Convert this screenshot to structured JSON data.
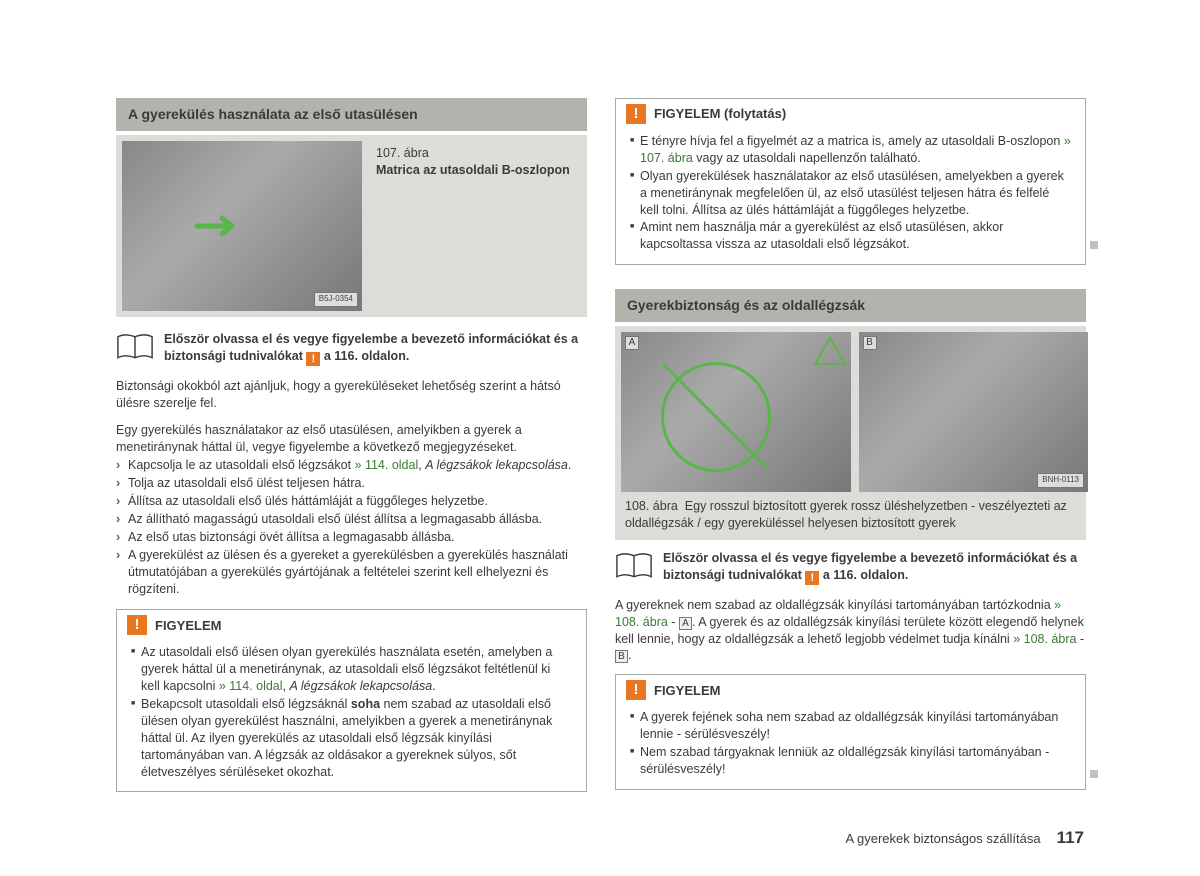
{
  "colors": {
    "header_bg": "#b3b3ae",
    "figure_bg": "#dcdcd8",
    "accent_orange": "#e87722",
    "link_green": "#3a7a35",
    "text": "#3a3a3a"
  },
  "left": {
    "header": "A gyerekülés használata az első utasülésen",
    "fig_num": "107. ábra",
    "fig_title": "Matrica az utasoldali B-oszlopon",
    "fig_badge": "B5J-0354",
    "info": {
      "pre": "Először olvassa el és vegye figyelembe a bevezető információkat és a biztonsági tudnivalókat ",
      "post": " a 116. oldalon."
    },
    "p1": "Biztonsági okokból azt ajánljuk, hogy a gyereküléseket lehetőség szerint a hátsó ülésre szerelje fel.",
    "p2": "Egy gyerekülés használatakor az első utasülésen, amelyikben a gyerek a menetiránynak háttal ül, vegye figyelembe a következő megjegyzéseket.",
    "list": [
      {
        "pre": "Kapcsolja le az utasoldali első légzsákot ",
        "link": "» 114. oldal",
        "post": ", ",
        "ital": "A légzsákok lekapcsolása",
        "tail": "."
      },
      {
        "pre": "Tolja az utasoldali első ülést teljesen hátra."
      },
      {
        "pre": "Állítsa az utasoldali első ülés háttámláját a függőleges helyzetbe."
      },
      {
        "pre": "Az állítható magasságú utasoldali első ülést állítsa a legmagasabb állásba."
      },
      {
        "pre": "Az első utas biztonsági övét állítsa a legmagasabb állásba."
      },
      {
        "pre": "A gyerekülést az ülésen és a gyereket a gyerekülésben a gyerekülés használati útmutatójában a gyerekülés gyártójának a feltételei szerint kell elhelyezni és rögzíteni."
      }
    ],
    "warn_title": "FIGYELEM",
    "warn_items": [
      {
        "pre": "Az utasoldali első ülésen olyan gyerekülés használata esetén, amelyben a gyerek háttal ül a menetiránynak, az utasoldali első légzsákot feltétlenül ki kell kapcsolni ",
        "link": "» 114. oldal",
        "post": ", ",
        "ital": "A légzsákok lekapcsolása",
        "tail": "."
      },
      {
        "pre": "Bekapcsolt utasoldali első légzsáknál ",
        "bold": "soha",
        "post": " nem szabad az utasoldali első ülésen olyan gyerekülést használni, amelyikben a gyerek a menetiránynak háttal ül. Az ilyen gyerekülés az utasoldali első légzsák kinyílási tartományában van. A légzsák az oldásakor a gyereknek súlyos, sőt életveszélyes sérüléseket okozhat."
      }
    ]
  },
  "right": {
    "warn_cont_title": "FIGYELEM (folytatás)",
    "warn_cont_items": [
      {
        "pre": "E tényre hívja fel a figyelmét az a matrica is, amely az utasoldali B-oszlopon ",
        "link": "» 107. ábra",
        "post": " vagy az utasoldali napellenzőn található."
      },
      {
        "pre": "Olyan gyerekülések használatakor az első utasülésen, amelyekben a gyerek a menetiránynak megfelelően ül, az első utasülést teljesen hátra és felfelé kell tolni. Állítsa az ülés háttámláját a függőleges helyzetbe."
      },
      {
        "pre": "Amint nem használja már a gyerekülést az első utasülésen, akkor kapcsoltassa vissza az utasoldali első légzsákot."
      }
    ],
    "header2": "Gyerekbiztonság és az oldallégzsák",
    "fig2_badge": "BNH-0113",
    "fig2_num": "108. ábra",
    "fig2_title": "Egy rosszul biztosított gyerek rossz üléshelyzetben - veszélyezteti az oldallégzsák / egy gyereküléssel helyesen biztosított gyerek",
    "info2": {
      "pre": "Először olvassa el és vegye figyelembe a bevezető információkat és a biztonsági tudnivalókat ",
      "post": " a 116. oldalon."
    },
    "p3_1": "A gyereknek nem szabad az oldallégzsák kinyílási tartományában tartózkodnia ",
    "p3_link1": "» 108. ábra",
    "p3_2": " - ",
    "p3_letterA": "A",
    "p3_3": ". A gyerek és az oldallégzsák kinyílási területe között elegendő helynek kell lennie, hogy az oldallégzsák a lehető legjobb védelmet tudja kínálni ",
    "p3_link2": "» 108. ábra",
    "p3_4": " - ",
    "p3_letterB": "B",
    "p3_5": ".",
    "warn2_title": "FIGYELEM",
    "warn2_items": [
      "A gyerek fejének soha nem szabad az oldallégzsák kinyílási tartományában lennie - sérülésveszély!",
      "Nem szabad tárgyaknak lenniük az oldallégzsák kinyílási tartományában - sérülésveszély!"
    ]
  },
  "footer_text": "A gyerekek biztonságos szállítása",
  "page_number": "117"
}
